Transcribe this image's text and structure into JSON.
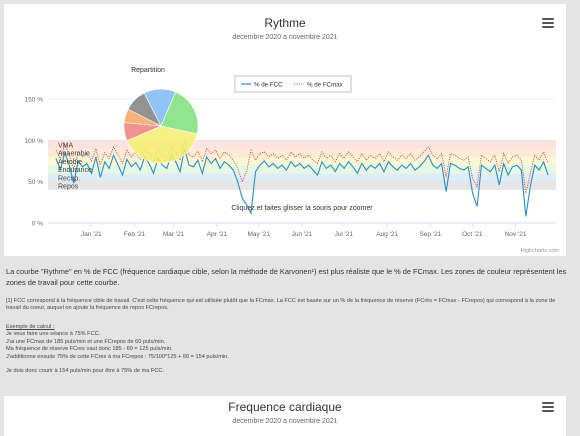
{
  "chart1": {
    "title": "Rythme",
    "subtitle": "decembre 2020 a novembre 2021",
    "legend": [
      "% de FCC",
      "% de FCmax"
    ],
    "zones": [
      "VMA",
      "Anaerobie",
      "Aerobie",
      "Endurance",
      "Recup.",
      "Repos"
    ],
    "pie_title": "Repartition",
    "hint": "Cliquez et faites glisser la souris pour zoomer",
    "credits": "Highcharts.com",
    "menu_icon": "hamburger-menu-icon"
  },
  "chart_data": [
    {
      "type": "line",
      "title": "Rythme",
      "subtitle": "decembre 2020 a novembre 2021",
      "ylabel": "",
      "ylim": [
        0,
        150
      ],
      "y_ticks": [
        "0 %",
        "50 %",
        "100 %",
        "150 %"
      ],
      "x_ticks": [
        "Jan '21",
        "Feb '21",
        "Mar '21",
        "Apr '21",
        "May '21",
        "Jun '21",
        "Jul '21",
        "Aug '21",
        "Sep '21",
        "Oct '21",
        "Nov '21"
      ],
      "x_range": [
        "2020-12-01",
        "2021-11-30"
      ],
      "legend_position": "top-center",
      "bands": [
        {
          "name": "VMA",
          "from": 90,
          "to": 100,
          "color": "#fde2e2"
        },
        {
          "name": "Anaerobie",
          "from": 80,
          "to": 90,
          "color": "#fdebd8"
        },
        {
          "name": "Aerobie",
          "from": 70,
          "to": 80,
          "color": "#fdf7d6"
        },
        {
          "name": "Endurance",
          "from": 60,
          "to": 70,
          "color": "#e6f7e2"
        },
        {
          "name": "Recup.",
          "from": 50,
          "to": 60,
          "color": "#e0edf7"
        },
        {
          "name": "Repos",
          "from": 40,
          "to": 50,
          "color": "#e6e6e6"
        }
      ],
      "series": [
        {
          "name": "% de FCC",
          "color": "#2b8fc4",
          "style": "solid",
          "values": [
            78,
            65,
            85,
            70,
            48,
            75,
            68,
            72,
            60,
            80,
            55,
            74,
            66,
            82,
            70,
            58,
            77,
            68,
            73,
            64,
            80,
            72,
            60,
            78,
            70,
            66,
            82,
            74,
            62,
            90,
            70,
            68,
            76,
            60,
            80,
            72,
            78,
            66,
            74,
            70,
            64,
            50,
            30,
            22,
            12,
            62,
            70,
            75,
            68,
            72,
            66,
            70,
            64,
            74,
            68,
            72,
            66,
            70,
            64,
            58,
            74,
            66,
            70,
            62,
            72,
            66,
            74,
            68,
            60,
            72,
            64,
            70,
            66,
            72,
            62,
            74,
            68,
            64,
            70,
            66,
            72,
            64,
            68,
            74,
            82,
            70,
            66,
            72,
            38,
            72,
            70,
            66,
            64,
            68,
            36,
            20,
            70,
            66,
            62,
            70,
            46,
            72,
            58,
            68,
            70,
            64,
            8,
            44,
            70,
            64,
            74,
            58
          ]
        },
        {
          "name": "% de FCmax",
          "color": "#d84a4a",
          "style": "dotted",
          "values": [
            88,
            78,
            95,
            82,
            65,
            86,
            80,
            84,
            75,
            90,
            70,
            85,
            78,
            92,
            82,
            72,
            88,
            80,
            85,
            77,
            90,
            84,
            74,
            88,
            82,
            78,
            92,
            86,
            76,
            100,
            82,
            80,
            87,
            74,
            90,
            84,
            88,
            78,
            86,
            82,
            76,
            66,
            50,
            62,
            88,
            76,
            84,
            86,
            80,
            84,
            78,
            82,
            76,
            86,
            80,
            84,
            78,
            82,
            76,
            72,
            86,
            78,
            82,
            74,
            84,
            78,
            86,
            80,
            74,
            84,
            76,
            82,
            78,
            84,
            74,
            86,
            80,
            76,
            82,
            78,
            84,
            76,
            80,
            86,
            92,
            82,
            78,
            84,
            56,
            84,
            82,
            78,
            76,
            80,
            54,
            44,
            82,
            78,
            74,
            82,
            62,
            84,
            72,
            80,
            82,
            76,
            36,
            60,
            82,
            76,
            86,
            72
          ]
        }
      ]
    },
    {
      "type": "pie",
      "title": "Repartition",
      "labels": [
        "VMA",
        "Anaerobie",
        "Aerobie",
        "Endurance",
        "Recup.",
        "Repos"
      ],
      "values": [
        8,
        6,
        40,
        22,
        14,
        10
      ],
      "colors": [
        "#f08080",
        "#f4a460",
        "#f5ef6e",
        "#7ee07e",
        "#7fb8f5",
        "#808080"
      ]
    }
  ],
  "text": {
    "para1": "La courbe \"Rythme\" en % de FCC (fréquence cardiaque cible, selon la méthode de Karvonen¹) est plus réaliste que le % de FCmax. Les zones de couleur représentent les zones de travail pour cette courbe.",
    "footnote": "[1] FCC correspond à la fréquence cible de travail. C'est cette fréquence qui est utilisée plutôt que la FCmax. La FCC est basée sur un % de la fréquence de réserve (FCrés = FCmax - FCrepos) qui correspond à la zone de travail du coeur, auquel on ajoute la fréquence de repos FCrepos.",
    "example_title": "Exemple de calcul :",
    "example_lines": [
      "Je veux faire une séance à 75% FCC.",
      "J'ai une FCmax de 185 puls/min et une FCrepos de 60 puls/min.",
      "Ma fréquence de réserve FCres vaut donc 185 - 60 = 125 puls/min.",
      "J'additionne ensuite 75% de cette FCres à ma FCrepos : 75/100*125 + 60 = 154 puls/min.",
      "",
      "Je dois donc courir à 154 puls/min pour être à 75% de ma FCC."
    ]
  },
  "chart2": {
    "title": "Frequence cardiaque",
    "subtitle": "decembre 2020 a novembre 2021"
  }
}
